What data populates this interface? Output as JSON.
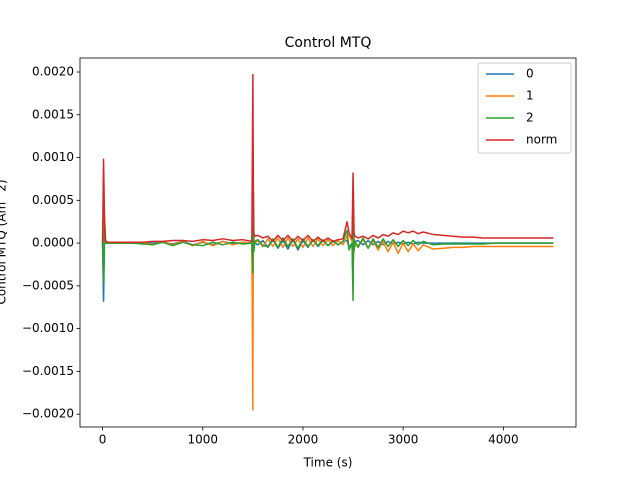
{
  "chart_data": {
    "type": "line",
    "title": "Control MTQ",
    "x_label": "Time (s)",
    "y_label": "Control MTQ (Am^2)",
    "x": [
      0,
      10,
      20,
      30,
      50,
      100,
      200,
      300,
      400,
      500,
      600,
      700,
      800,
      900,
      1000,
      1100,
      1200,
      1300,
      1400,
      1490,
      1500,
      1505,
      1510,
      1520,
      1550,
      1600,
      1650,
      1700,
      1750,
      1800,
      1850,
      1900,
      1950,
      2000,
      2050,
      2100,
      2150,
      2200,
      2250,
      2300,
      2350,
      2400,
      2440,
      2460,
      2490,
      2500,
      2505,
      2510,
      2520,
      2550,
      2600,
      2650,
      2700,
      2750,
      2800,
      2850,
      2900,
      2950,
      3000,
      3050,
      3100,
      3150,
      3200,
      3300,
      3400,
      3500,
      3600,
      3700,
      3800,
      3900,
      4000,
      4100,
      4200,
      4300,
      4400,
      4500
    ],
    "series": [
      {
        "name": "0",
        "color": "#1f77b4",
        "values": [
          0,
          -0.00068,
          5e-05,
          0,
          0,
          0,
          0,
          0,
          0,
          0,
          1e-05,
          -1e-05,
          2e-05,
          -2e-05,
          1e-05,
          -2e-05,
          2e-05,
          -1e-05,
          1e-05,
          0,
          -0.0005,
          0.00015,
          2e-05,
          0,
          -2e-05,
          3e-05,
          -5e-05,
          4e-05,
          -6e-05,
          3e-05,
          -7e-05,
          4e-05,
          -8e-05,
          3e-05,
          -5e-05,
          4e-05,
          -4e-05,
          3e-05,
          -3e-05,
          2e-05,
          -2e-05,
          2e-05,
          3e-05,
          -5e-05,
          0,
          -0.00045,
          0.0004,
          -0.0001,
          2e-05,
          3e-05,
          -2e-05,
          3e-05,
          -2e-05,
          2e-05,
          -2e-05,
          2e-05,
          -1e-05,
          1e-05,
          -1e-05,
          1e-05,
          -1e-05,
          1e-05,
          0,
          0,
          0,
          0,
          0,
          0,
          0,
          0,
          0,
          0,
          0,
          0,
          0,
          0
        ]
      },
      {
        "name": "1",
        "color": "#ff7f0e",
        "values": [
          0,
          0.0005,
          0.0001,
          0,
          0,
          0,
          0,
          0,
          1e-05,
          -2e-05,
          2e-05,
          -2e-05,
          2e-05,
          -3e-05,
          2e-05,
          -3e-05,
          2e-05,
          -2e-05,
          1e-05,
          0,
          -0.00195,
          0.0004,
          5e-05,
          0,
          3e-05,
          -4e-05,
          5e-05,
          -4e-05,
          6e-05,
          -5e-05,
          6e-05,
          -4e-05,
          5e-05,
          -5e-05,
          6e-05,
          -4e-05,
          5e-05,
          -3e-05,
          4e-05,
          -3e-05,
          3e-05,
          -2e-05,
          8e-05,
          0.0001,
          2e-05,
          0.0006,
          -0.0002,
          5e-05,
          -3e-05,
          -3e-05,
          4e-05,
          -6e-05,
          3e-05,
          -8e-05,
          2e-05,
          -0.0001,
          1e-05,
          -0.00012,
          0,
          -0.0001,
          -1e-05,
          -9e-05,
          -2e-05,
          -7e-05,
          -6e-05,
          -5e-05,
          -5e-05,
          -4e-05,
          -4e-05,
          -4e-05,
          -4e-05,
          -4e-05,
          -4e-05,
          -4e-05,
          -4e-05,
          -4e-05
        ]
      },
      {
        "name": "2",
        "color": "#2ca02c",
        "values": [
          0,
          -0.00045,
          0.0003,
          0,
          0,
          0,
          0,
          0,
          -1e-05,
          -2e-05,
          1e-05,
          -3e-05,
          1e-05,
          -2e-05,
          -3e-05,
          1e-05,
          -2e-05,
          1e-05,
          -1e-05,
          0,
          -0.00035,
          0.0006,
          -0.0001,
          2e-05,
          4e-05,
          -3e-05,
          -4e-05,
          5e-05,
          -5e-05,
          6e-05,
          -4e-05,
          5e-05,
          -6e-05,
          5e-05,
          -4e-05,
          4e-05,
          -3e-05,
          4e-05,
          -3e-05,
          3e-05,
          -2e-05,
          2e-05,
          0.00015,
          -8e-05,
          0,
          -0.00067,
          0.0003,
          -5e-05,
          2e-05,
          -5e-05,
          6e-05,
          -6e-05,
          5e-05,
          -5e-05,
          5e-05,
          -4e-05,
          4e-05,
          -4e-05,
          3e-05,
          -3e-05,
          3e-05,
          -2e-05,
          2e-05,
          -2e-05,
          -1e-05,
          -1e-05,
          -1e-05,
          -1e-05,
          -1e-05,
          0,
          0,
          0,
          0,
          0,
          0,
          0
        ]
      },
      {
        "name": "norm",
        "color": "#d62728",
        "values": [
          0,
          0.00098,
          0.00025,
          3e-05,
          1e-05,
          1e-05,
          1e-05,
          1e-05,
          1e-05,
          2e-05,
          2e-05,
          3e-05,
          3e-05,
          2e-05,
          4e-05,
          3e-05,
          5e-05,
          3e-05,
          4e-05,
          2e-05,
          0.00197,
          0.00065,
          0.00012,
          8e-05,
          9e-05,
          6e-05,
          8e-05,
          2e-05,
          9e-05,
          3e-05,
          9e-05,
          2e-05,
          8e-05,
          3e-05,
          9e-05,
          2e-05,
          7e-05,
          2e-05,
          6e-05,
          2e-05,
          4e-05,
          5e-05,
          0.00025,
          0.00012,
          5e-05,
          0.00082,
          0.0005,
          0.00012,
          8e-05,
          6e-05,
          8e-05,
          5e-05,
          9e-05,
          6e-05,
          0.0001,
          8e-05,
          0.00012,
          0.0001,
          0.00014,
          0.00012,
          0.00014,
          0.00011,
          0.00013,
          0.0001,
          9e-05,
          8e-05,
          7e-05,
          7e-05,
          6e-05,
          6e-05,
          6e-05,
          6e-05,
          6e-05,
          6e-05,
          6e-05,
          6e-05
        ]
      }
    ],
    "xlim": [
      -225,
      4725
    ],
    "xticks": [
      0,
      1000,
      2000,
      3000,
      4000
    ],
    "ylim": [
      -0.00215,
      0.002164
    ],
    "yticks": [
      {
        "value": -0.002,
        "label": "−0.0020"
      },
      {
        "value": -0.0015,
        "label": "−0.0015"
      },
      {
        "value": -0.001,
        "label": "−0.0010"
      },
      {
        "value": -0.0005,
        "label": "−0.0005"
      },
      {
        "value": 0,
        "label": "0.0000"
      },
      {
        "value": 0.0005,
        "label": "0.0005"
      },
      {
        "value": 0.001,
        "label": "0.0010"
      },
      {
        "value": 0.0015,
        "label": "0.0015"
      },
      {
        "value": 0.002,
        "label": "0.0020"
      }
    ],
    "legend": "upper right"
  }
}
